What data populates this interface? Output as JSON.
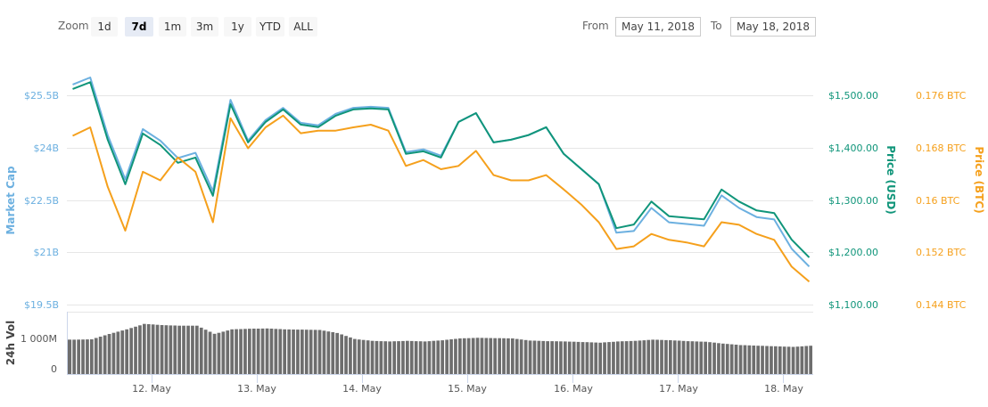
{
  "toolbar": {
    "zoom_label": "Zoom",
    "zoom_buttons": [
      "1d",
      "7d",
      "1m",
      "3m",
      "1y",
      "YTD",
      "ALL"
    ],
    "active_zoom": "7d",
    "from_label": "From",
    "from_value": "May 11, 2018",
    "to_label": "To",
    "to_value": "May 18, 2018"
  },
  "colors": {
    "market_cap": "#6cb0e0",
    "price_usd": "#10957a",
    "price_btc": "#f5a01c",
    "volume": "#6e6e6e"
  },
  "chart_data": {
    "type": "line",
    "x_ticks": [
      "12. May",
      "13. May",
      "14. May",
      "15. May",
      "16. May",
      "17. May",
      "18. May"
    ],
    "axes": {
      "market_cap": {
        "title": "Market Cap",
        "ticks": [
          "$19.5B",
          "$21B",
          "$22.5B",
          "$24B",
          "$25.5B"
        ],
        "ylim": [
          19.5,
          25.5
        ],
        "unit": "B USD"
      },
      "price_usd": {
        "title": "Price (USD)",
        "ticks": [
          "$1,100.00",
          "$1,200.00",
          "$1,300.00",
          "$1,400.00",
          "$1,500.00"
        ],
        "ylim": [
          1100,
          1500
        ]
      },
      "price_btc": {
        "title": "Price (BTC)",
        "ticks": [
          "0.144 BTC",
          "0.152 BTC",
          "0.16 BTC",
          "0.168 BTC",
          "0.176 BTC"
        ],
        "ylim": [
          0.144,
          0.176
        ]
      },
      "volume": {
        "title": "24h Vol",
        "ticks": [
          "0",
          "1 000M"
        ],
        "ylim": [
          0,
          1000
        ],
        "unit": "M USD"
      }
    },
    "grid": true,
    "legend": "none",
    "x": [
      "2018-05-11T06:00",
      "2018-05-11T10:00",
      "2018-05-11T14:00",
      "2018-05-11T18:00",
      "2018-05-11T22:00",
      "2018-05-12T02:00",
      "2018-05-12T06:00",
      "2018-05-12T10:00",
      "2018-05-12T14:00",
      "2018-05-12T18:00",
      "2018-05-12T22:00",
      "2018-05-13T02:00",
      "2018-05-13T06:00",
      "2018-05-13T10:00",
      "2018-05-13T14:00",
      "2018-05-13T18:00",
      "2018-05-13T22:00",
      "2018-05-14T02:00",
      "2018-05-14T06:00",
      "2018-05-14T10:00",
      "2018-05-14T14:00",
      "2018-05-14T18:00",
      "2018-05-14T22:00",
      "2018-05-15T02:00",
      "2018-05-15T06:00",
      "2018-05-15T10:00",
      "2018-05-15T14:00",
      "2018-05-15T18:00",
      "2018-05-15T22:00",
      "2018-05-16T02:00",
      "2018-05-16T06:00",
      "2018-05-16T10:00",
      "2018-05-16T14:00",
      "2018-05-16T18:00",
      "2018-05-16T22:00",
      "2018-05-17T02:00",
      "2018-05-17T06:00",
      "2018-05-17T10:00",
      "2018-05-17T14:00",
      "2018-05-17T18:00",
      "2018-05-17T22:00",
      "2018-05-18T02:00",
      "2018-05-18T06:00"
    ],
    "series": [
      {
        "name": "Market Cap",
        "axis": "market_cap",
        "values": [
          25.81,
          26.01,
          24.36,
          23.09,
          24.53,
          24.2,
          23.7,
          23.85,
          22.75,
          25.37,
          24.2,
          24.79,
          25.14,
          24.71,
          24.64,
          24.97,
          25.14,
          25.17,
          25.14,
          23.87,
          23.95,
          23.77,
          24.74,
          24.99,
          24.15,
          24.23,
          24.36,
          24.58,
          23.82,
          23.39,
          22.96,
          21.56,
          21.61,
          22.27,
          21.86,
          21.81,
          21.76,
          22.63,
          22.27,
          22.01,
          21.94,
          21.1,
          20.59
        ]
      },
      {
        "name": "Price (USD)",
        "axis": "price_usd",
        "values": [
          1512,
          1525,
          1415,
          1330,
          1427,
          1405,
          1371,
          1381,
          1308,
          1483,
          1410,
          1449,
          1473,
          1444,
          1439,
          1461,
          1473,
          1475,
          1473,
          1388,
          1393,
          1381,
          1449,
          1466,
          1410,
          1415,
          1424,
          1439,
          1388,
          1359,
          1330,
          1246,
          1253,
          1297,
          1269,
          1266,
          1263,
          1320,
          1297,
          1280,
          1275,
          1224,
          1190
        ]
      },
      {
        "name": "Price (BTC)",
        "axis": "price_btc",
        "values": [
          0.1698,
          0.1711,
          0.162,
          0.1553,
          0.1643,
          0.163,
          0.1665,
          0.1643,
          0.1566,
          0.1725,
          0.1679,
          0.1711,
          0.1729,
          0.1702,
          0.1706,
          0.1706,
          0.1711,
          0.1715,
          0.1706,
          0.1652,
          0.1661,
          0.1647,
          0.1652,
          0.1675,
          0.1638,
          0.163,
          0.163,
          0.1638,
          0.1616,
          0.1593,
          0.1566,
          0.1525,
          0.1529,
          0.1548,
          0.1539,
          0.1535,
          0.1529,
          0.1566,
          0.1562,
          0.1548,
          0.1539,
          0.1498,
          0.1475
        ]
      },
      {
        "name": "24h Vol",
        "axis": "volume",
        "type": "bar",
        "values": [
          960,
          970,
          1150,
          1300,
          1480,
          1440,
          1420,
          1420,
          1150,
          1300,
          1320,
          1330,
          1300,
          1290,
          1280,
          1180,
          980,
          920,
          900,
          920,
          900,
          940,
          1000,
          1020,
          1010,
          1000,
          930,
          910,
          900,
          880,
          860,
          900,
          920,
          960,
          940,
          910,
          890,
          830,
          780,
          760,
          740,
          720,
          760
        ]
      }
    ]
  }
}
